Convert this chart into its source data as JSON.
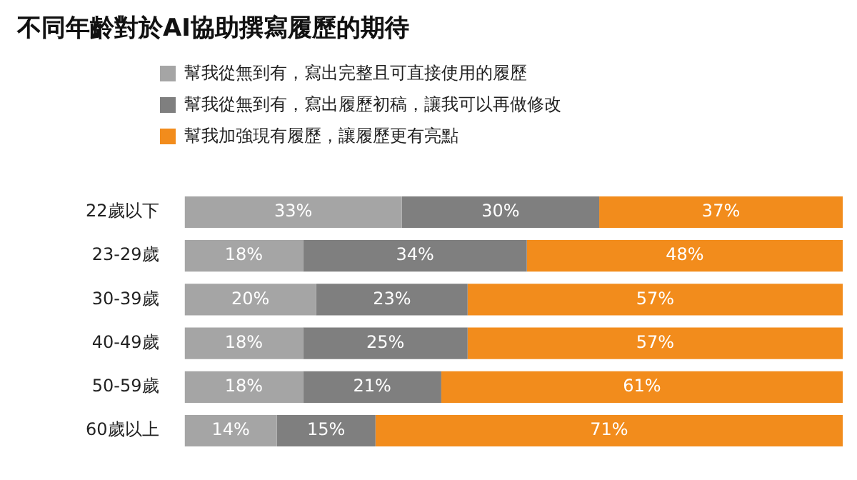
{
  "chart_data": {
    "type": "bar",
    "orientation": "horizontal",
    "stacked": true,
    "title": "不同年齡對於AI協助撰寫履歷的期待",
    "categories": [
      "22歲以下",
      "23-29歲",
      "30-39歲",
      "40-49歲",
      "50-59歲",
      "60歲以上"
    ],
    "series": [
      {
        "name": "幫我從無到有，寫出完整且可直接使用的履歷",
        "color": "#a5a5a5",
        "values": [
          33,
          18,
          20,
          18,
          18,
          14
        ],
        "value_labels": [
          "33%",
          "18%",
          "20%",
          "18%",
          "18%",
          "14%"
        ]
      },
      {
        "name": "幫我從無到有，寫出履歷初稿，讓我可以再做修改",
        "color": "#7f7f7f",
        "values": [
          30,
          34,
          23,
          25,
          21,
          15
        ],
        "value_labels": [
          "30%",
          "34%",
          "23%",
          "25%",
          "21%",
          "15%"
        ]
      },
      {
        "name": "幫我加強現有履歷，讓履歷更有亮點",
        "color": "#f28c1c",
        "values": [
          37,
          48,
          57,
          57,
          61,
          71
        ],
        "value_labels": [
          "37%",
          "48%",
          "57%",
          "57%",
          "61%",
          "71%"
        ]
      }
    ],
    "legend": "top"
  }
}
